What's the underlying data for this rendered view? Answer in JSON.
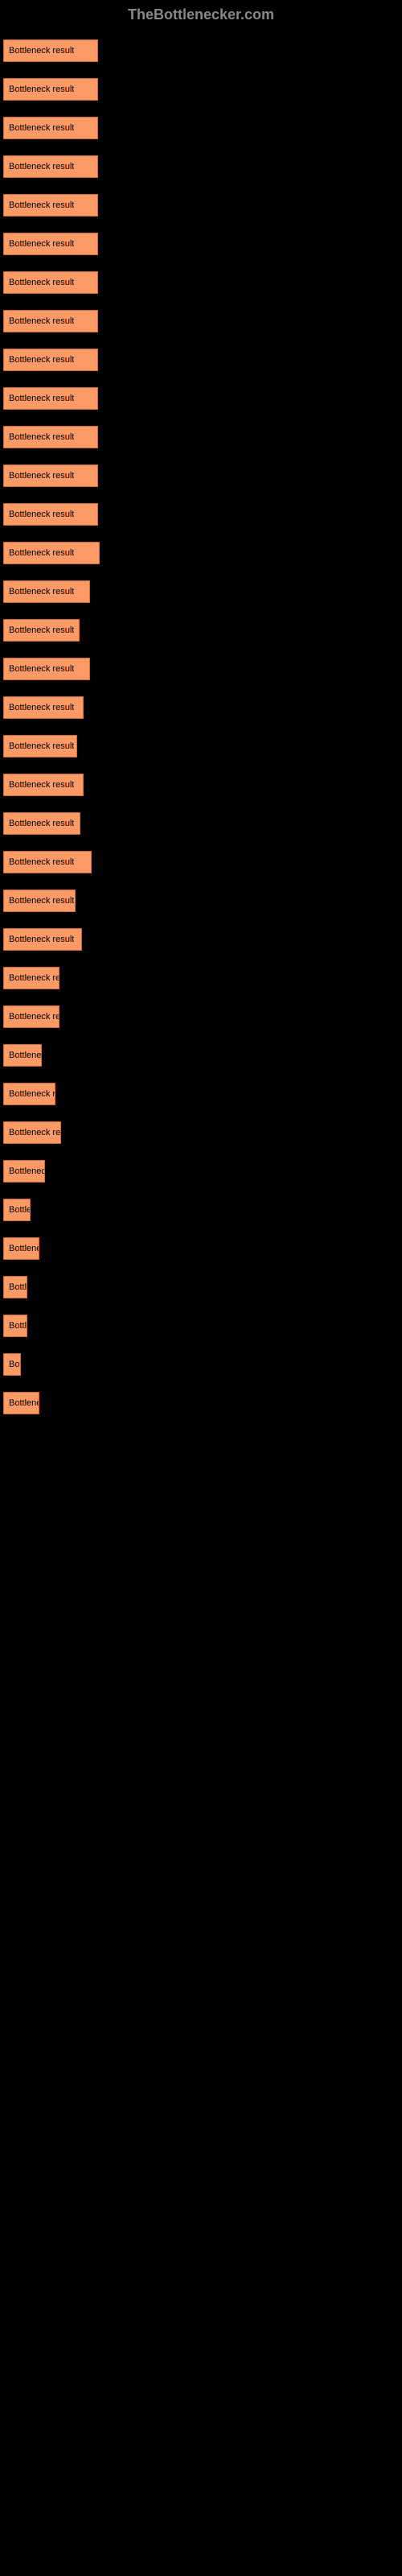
{
  "header_text": "TheBottlenecker.com",
  "bar_label": "Bottleneck result",
  "link_text": "",
  "bar_color": "#ff9966",
  "bar_border_color": "#cc6633",
  "background_color": "#000000",
  "link_color": "#4a9eff",
  "header_color": "#888888",
  "max_width": 120,
  "bars": [
    {
      "width": 118
    },
    {
      "width": 118
    },
    {
      "width": 118
    },
    {
      "width": 118
    },
    {
      "width": 118
    },
    {
      "width": 118
    },
    {
      "width": 118
    },
    {
      "width": 118
    },
    {
      "width": 118
    },
    {
      "width": 118
    },
    {
      "width": 118
    },
    {
      "width": 118
    },
    {
      "width": 118
    },
    {
      "width": 120
    },
    {
      "width": 108
    },
    {
      "width": 95
    },
    {
      "width": 108
    },
    {
      "width": 100
    },
    {
      "width": 92
    },
    {
      "width": 100
    },
    {
      "width": 96
    },
    {
      "width": 110
    },
    {
      "width": 90
    },
    {
      "width": 98
    },
    {
      "width": 70
    },
    {
      "width": 70
    },
    {
      "width": 48
    },
    {
      "width": 65
    },
    {
      "width": 72
    },
    {
      "width": 52
    },
    {
      "width": 34
    },
    {
      "width": 45
    },
    {
      "width": 30
    },
    {
      "width": 30
    },
    {
      "width": 22
    },
    {
      "width": 45
    }
  ]
}
